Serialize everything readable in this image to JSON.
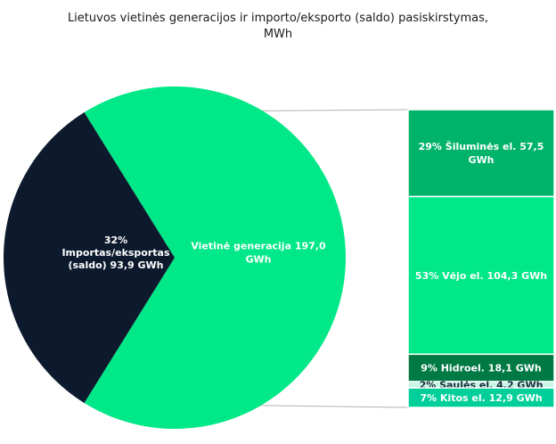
{
  "chart_data": {
    "type": "bar-of-pie",
    "title_lines": [
      "Lietuvos vietinės generacijos ir importo/eksporto (saldo) pasiskirstymas,",
      "MWh"
    ],
    "pie": [
      {
        "label_lines": [
          "Vietinė generacija  197,0",
          "GWh"
        ],
        "value": 197.0,
        "color": "#00e887"
      },
      {
        "label_lines": [
          "32%",
          "Importas/eksportas",
          "(saldo)  93,9 GWh"
        ],
        "value": 93.9,
        "color": "#0d1a2d"
      }
    ],
    "breakdown": [
      {
        "label_lines": [
          "29% Šiluminės el.  57,5",
          "GWh"
        ],
        "value": 57.5,
        "color": "#00b36b"
      },
      {
        "label_lines": [
          "53% Vėjo el.  104,3 GWh"
        ],
        "value": 104.3,
        "color": "#00e887"
      },
      {
        "label_lines": [
          "9% Hidroel.  18,1 GWh"
        ],
        "value": 18.1,
        "color": "#007a45"
      },
      {
        "label_lines": [
          "2%  Saulės el.  4,2 GWh"
        ],
        "value": 4.2,
        "color": "#c8f5e6"
      },
      {
        "label_lines": [
          "7% Kitos el.  12,9 GWh"
        ],
        "value": 12.9,
        "color": "#00cf9a"
      }
    ]
  }
}
